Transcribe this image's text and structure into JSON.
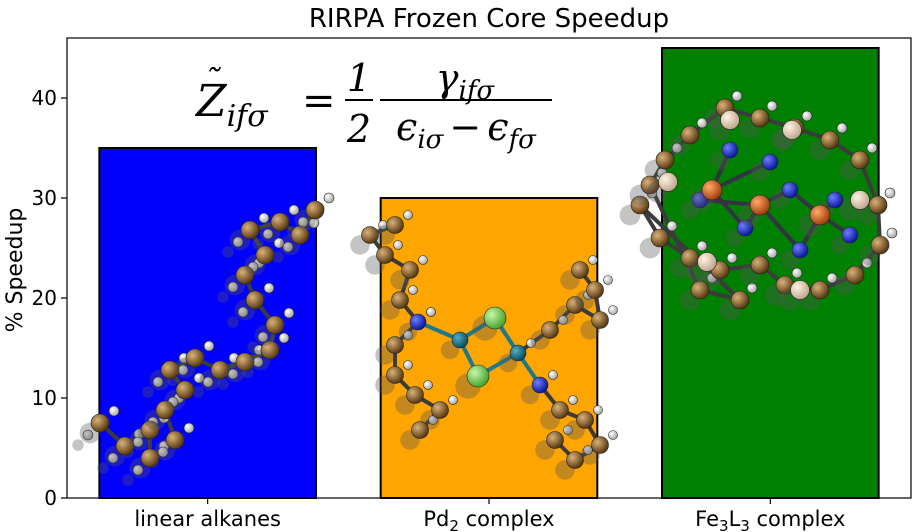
{
  "chart_data": {
    "type": "bar",
    "title": "RIRPA Frozen Core Speedup",
    "ylabel": "% Speedup",
    "xlabel": "",
    "ylim": [
      0,
      46
    ],
    "yticks": [
      0,
      10,
      20,
      30,
      40
    ],
    "grid": false,
    "categories": [
      {
        "base": "linear alkanes",
        "sub": "",
        "mid": "",
        "sub2": "",
        "tail": ""
      },
      {
        "base": "Pd",
        "sub": "2",
        "mid": " complex",
        "sub2": "",
        "tail": ""
      },
      {
        "base": "Fe",
        "sub": "3",
        "mid": "L",
        "sub2": "3",
        "tail": " complex"
      }
    ],
    "values": [
      35,
      30,
      45
    ],
    "colors": [
      "#0000ff",
      "#ffa500",
      "#008000"
    ],
    "annotation": {
      "lhs": "Z",
      "lhs_sub": "ifσ",
      "eq": "=",
      "frac1_num": "1",
      "frac1_den": "2",
      "num": "γ",
      "num_sub": "ifσ",
      "den_a": "ϵ",
      "den_a_sub": "iσ",
      "minus": "−",
      "den_b": "ϵ",
      "den_b_sub": "fσ"
    }
  }
}
